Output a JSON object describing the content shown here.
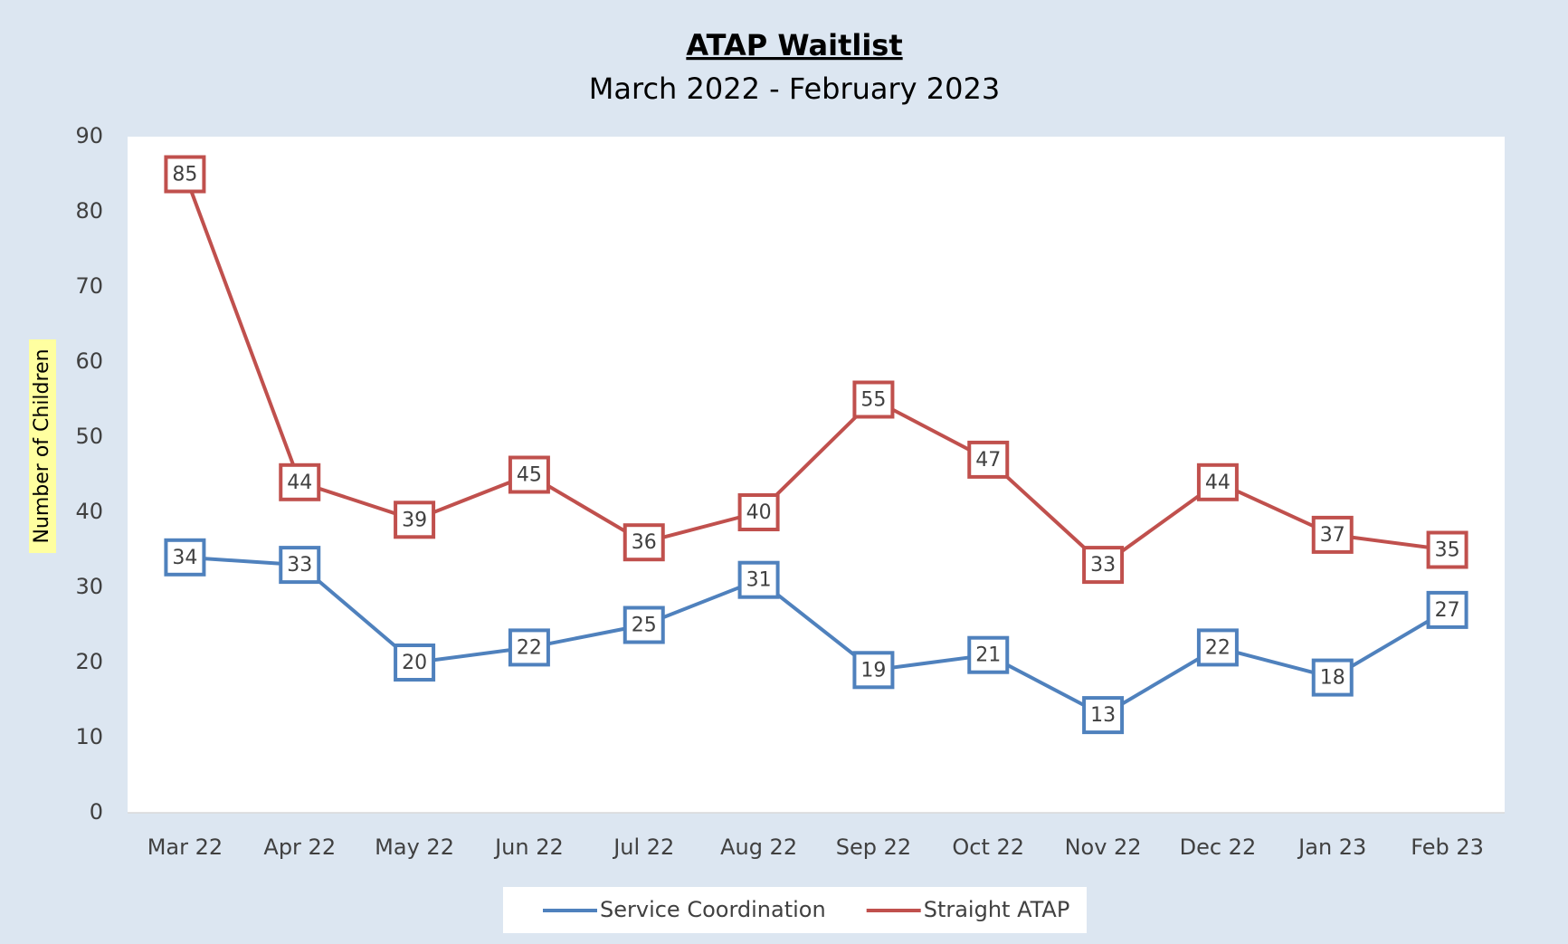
{
  "chart_data": {
    "type": "line",
    "title": "ATAP Waitlist",
    "subtitle": "March 2022 - February 2023",
    "y_label": "Number of  Children",
    "categories": [
      "Mar 22",
      "Apr 22",
      "May 22",
      "Jun 22",
      "Jul 22",
      "Aug 22",
      "Sep 22",
      "Oct 22",
      "Nov 22",
      "Dec 22",
      "Jan 23",
      "Feb 23"
    ],
    "series": [
      {
        "name": "Service Coordination",
        "color": "#4f81bd",
        "values": [
          34,
          33,
          20,
          22,
          25,
          31,
          19,
          21,
          13,
          22,
          18,
          27
        ]
      },
      {
        "name": "Straight ATAP",
        "color": "#c0504d",
        "values": [
          85,
          44,
          39,
          45,
          36,
          40,
          55,
          47,
          33,
          44,
          37,
          35
        ]
      }
    ],
    "ylim": [
      0,
      90
    ],
    "yticks": [
      0,
      10,
      20,
      30,
      40,
      50,
      60,
      70,
      80,
      90
    ],
    "grid": false,
    "legend": "bottom"
  }
}
